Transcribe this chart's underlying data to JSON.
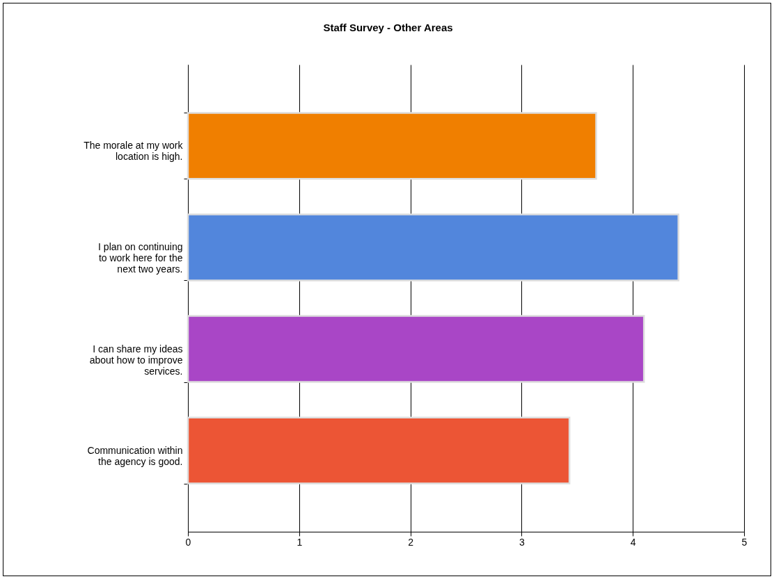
{
  "chart_data": {
    "type": "bar",
    "orientation": "horizontal",
    "title": "Staff Survey - Other Areas",
    "categories": [
      "The morale at my work location is high.",
      "I plan on continuing to work here for the next two years.",
      "I can share my ideas about how to improve services.",
      "Communication within the agency is good."
    ],
    "values": [
      3.67,
      4.41,
      4.1,
      3.43
    ],
    "colors": [
      "#f07f00",
      "#5286dc",
      "#a946c6",
      "#ec5535"
    ],
    "xlim": [
      0,
      5
    ],
    "xticks": [
      0,
      1,
      2,
      3,
      4,
      5
    ],
    "grid": "x"
  }
}
